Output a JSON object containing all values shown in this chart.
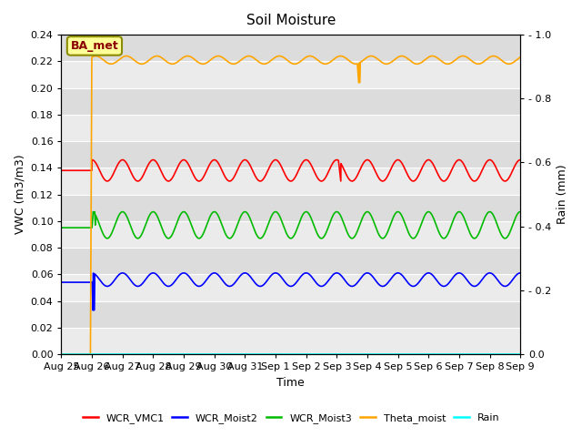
{
  "title": "Soil Moisture",
  "xlabel": "Time",
  "ylabel_left": "VWC (m3/m3)",
  "ylabel_right": "Rain (mm)",
  "ylim_left": [
    0.0,
    0.24
  ],
  "ylim_right": [
    0.0,
    1.0
  ],
  "bg_color": "#dcdcdc",
  "annotation_text": "BA_met",
  "annotation_color": "#8B0000",
  "annotation_bg": "#ffff99",
  "annotation_border": "#8B8B00",
  "xtick_labels": [
    "Aug 25",
    "Aug 26",
    "Aug 27",
    "Aug 28",
    "Aug 29",
    "Aug 30",
    "Aug 31",
    "Sep 1",
    "Sep 2",
    "Sep 3",
    "Sep 4",
    "Sep 5",
    "Sep 6",
    "Sep 7",
    "Sep 8",
    "Sep 9"
  ],
  "yticks_left": [
    0.0,
    0.02,
    0.04,
    0.06,
    0.08,
    0.1,
    0.12,
    0.14,
    0.16,
    0.18,
    0.2,
    0.22,
    0.24
  ],
  "yticks_right": [
    0.0,
    0.2,
    0.4,
    0.6,
    0.8,
    1.0
  ],
  "series_colors": {
    "WCR_VMC1": "red",
    "WCR_Moist2": "blue",
    "WCR_Moist3": "#00bb00",
    "Theta_moist": "orange",
    "Rain": "cyan"
  }
}
